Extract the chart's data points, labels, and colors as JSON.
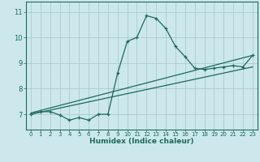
{
  "title": "",
  "xlabel": "Humidex (Indice chaleur)",
  "bg_color": "#cce8ec",
  "grid_color": "#aacccc",
  "line_color": "#1a6b5a",
  "spine_color": "#1a6b5a",
  "xlim": [
    -0.5,
    23.5
  ],
  "ylim": [
    6.4,
    11.4
  ],
  "yticks": [
    7,
    8,
    9,
    10,
    11
  ],
  "xticks": [
    0,
    1,
    2,
    3,
    4,
    5,
    6,
    7,
    8,
    9,
    10,
    11,
    12,
    13,
    14,
    15,
    16,
    17,
    18,
    19,
    20,
    21,
    22,
    23
  ],
  "main_line_x": [
    0,
    1,
    2,
    3,
    4,
    5,
    6,
    7,
    8,
    9,
    10,
    11,
    12,
    13,
    14,
    15,
    16,
    17,
    18,
    19,
    20,
    21,
    22,
    23
  ],
  "main_line_y": [
    7.0,
    7.1,
    7.1,
    6.97,
    6.77,
    6.87,
    6.77,
    7.0,
    7.0,
    8.6,
    9.85,
    10.0,
    10.85,
    10.75,
    10.35,
    9.65,
    9.25,
    8.8,
    8.75,
    8.8,
    8.85,
    8.9,
    8.85,
    9.3
  ],
  "line2_x": [
    0,
    23
  ],
  "line2_y": [
    7.05,
    9.3
  ],
  "line3_x": [
    0,
    23
  ],
  "line3_y": [
    7.0,
    8.85
  ]
}
